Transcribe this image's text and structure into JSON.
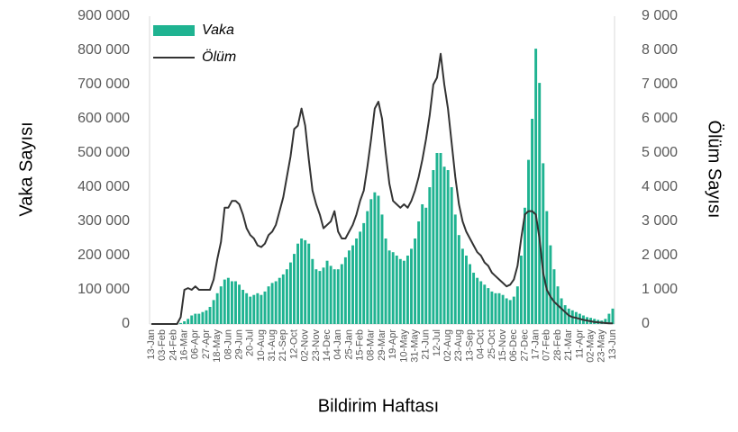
{
  "chart_data": {
    "type": "bar_line",
    "x_label": "Bildirim Haftası",
    "y_label": "Vaka Sayısı",
    "y2_label": "Ölüm Sayısı",
    "categories": [
      "13-Jan",
      null,
      null,
      "03-Feb",
      null,
      null,
      "24-Feb",
      null,
      null,
      "16-Mar",
      null,
      null,
      "06-Apr",
      null,
      null,
      "27-Apr",
      null,
      null,
      "18-May",
      null,
      null,
      "08-Jun",
      null,
      null,
      "29-Jun",
      null,
      null,
      "20-Jul",
      null,
      null,
      "10-Aug",
      null,
      null,
      "31-Aug",
      null,
      null,
      "21-Sep",
      null,
      null,
      "12-Oct",
      null,
      null,
      "02-Nov",
      null,
      null,
      "23-Nov",
      null,
      null,
      "14-Dec",
      null,
      null,
      "04-Jan",
      null,
      null,
      "25-Jan",
      null,
      null,
      "15-Feb",
      null,
      null,
      "08-Mar",
      null,
      null,
      "29-Mar",
      null,
      null,
      "19-Apr",
      null,
      null,
      "10-May",
      null,
      null,
      "31-May",
      null,
      null,
      "21-Jun",
      null,
      null,
      "12-Jul",
      null,
      null,
      "02-Aug",
      null,
      null,
      "23-Aug",
      null,
      null,
      "13-Sep",
      null,
      null,
      "04-Oct",
      null,
      null,
      "25-Oct",
      null,
      null,
      "15-Nov",
      null,
      null,
      "06-Dec",
      null,
      null,
      "27-Dec",
      null,
      null,
      "17-Jan",
      null,
      null,
      "07-Feb",
      null,
      null,
      "28-Feb",
      null,
      null,
      "21-Mar",
      null,
      null,
      "11-Apr",
      null,
      null,
      "02-May",
      null,
      null,
      "23-May",
      null,
      null,
      "13-Jun"
    ],
    "series": [
      {
        "name": "Vaka",
        "type": "bar",
        "color": "#1fb391",
        "values": [
          0,
          0,
          0,
          0,
          0,
          0,
          0,
          1000,
          3000,
          8000,
          15000,
          25000,
          30000,
          30000,
          35000,
          40000,
          50000,
          70000,
          90000,
          110000,
          130000,
          135000,
          125000,
          125000,
          115000,
          100000,
          90000,
          80000,
          85000,
          90000,
          85000,
          95000,
          110000,
          120000,
          125000,
          135000,
          145000,
          160000,
          180000,
          205000,
          235000,
          250000,
          245000,
          235000,
          190000,
          160000,
          155000,
          165000,
          185000,
          170000,
          160000,
          160000,
          175000,
          195000,
          215000,
          230000,
          250000,
          270000,
          295000,
          330000,
          365000,
          385000,
          375000,
          320000,
          250000,
          215000,
          210000,
          200000,
          190000,
          185000,
          200000,
          220000,
          250000,
          300000,
          350000,
          340000,
          400000,
          450000,
          500000,
          500000,
          460000,
          450000,
          400000,
          320000,
          260000,
          220000,
          200000,
          175000,
          150000,
          135000,
          125000,
          115000,
          105000,
          95000,
          90000,
          90000,
          85000,
          75000,
          70000,
          80000,
          110000,
          200000,
          340000,
          480000,
          600000,
          805000,
          705000,
          470000,
          330000,
          230000,
          160000,
          110000,
          75000,
          55000,
          45000,
          40000,
          35000,
          30000,
          25000,
          20000,
          18000,
          15000,
          12000,
          10000,
          15000,
          30000,
          45000
        ]
      },
      {
        "name": "Ölüm",
        "type": "line",
        "axis": "y2",
        "color": "#333333",
        "values": [
          0,
          0,
          0,
          0,
          0,
          0,
          0,
          0,
          200,
          1000,
          1050,
          1000,
          1100,
          1000,
          1000,
          1000,
          1000,
          1300,
          1900,
          2400,
          3400,
          3400,
          3600,
          3600,
          3500,
          3200,
          2800,
          2600,
          2500,
          2300,
          2250,
          2350,
          2600,
          2700,
          2900,
          3300,
          3700,
          4300,
          4900,
          5700,
          5800,
          6300,
          5800,
          4800,
          3900,
          3500,
          3200,
          2800,
          2900,
          3000,
          3300,
          2700,
          2500,
          2500,
          2700,
          2900,
          3200,
          3600,
          3900,
          4600,
          5400,
          6300,
          6500,
          6000,
          5000,
          4100,
          3600,
          3500,
          3400,
          3500,
          3400,
          3600,
          3900,
          4300,
          4800,
          5400,
          6100,
          7000,
          7200,
          7900,
          7000,
          6300,
          5300,
          4300,
          3500,
          3000,
          2700,
          2500,
          2300,
          2100,
          2000,
          1800,
          1700,
          1500,
          1400,
          1300,
          1200,
          1100,
          1150,
          1300,
          1700,
          2500,
          3200,
          3300,
          3300,
          3200,
          2500,
          1500,
          1000,
          800,
          650,
          550,
          450,
          350,
          250,
          200,
          180,
          150,
          120,
          100,
          80,
          60,
          50,
          40,
          30,
          20,
          20
        ]
      }
    ],
    "ylim": [
      0,
      900000
    ],
    "yticks": [
      0,
      {
        "value": 100000,
        "label": "100 000"
      },
      {
        "value": 200000,
        "label": "200 000"
      },
      {
        "value": 300000,
        "label": "300 000"
      },
      {
        "value": 400000,
        "label": "400 000"
      },
      {
        "value": 500000,
        "label": "500 000"
      },
      {
        "value": 600000,
        "label": "600 000"
      },
      {
        "value": 700000,
        "label": "700 000"
      },
      {
        "value": 800000,
        "label": "800 000"
      },
      {
        "value": 900000,
        "label": "900 000"
      }
    ],
    "y2lim": [
      0,
      9000
    ],
    "y2ticks": [
      0,
      {
        "value": 1000,
        "label": "1 000"
      },
      {
        "value": 2000,
        "label": "2 000"
      },
      {
        "value": 3000,
        "label": "3 000"
      },
      {
        "value": 4000,
        "label": "4 000"
      },
      {
        "value": 5000,
        "label": "5 000"
      },
      {
        "value": 6000,
        "label": "6 000"
      },
      {
        "value": 7000,
        "label": "7 000"
      },
      {
        "value": 8000,
        "label": "8 000"
      },
      {
        "value": 9000,
        "label": "9 000"
      }
    ],
    "legend": "top-left"
  }
}
